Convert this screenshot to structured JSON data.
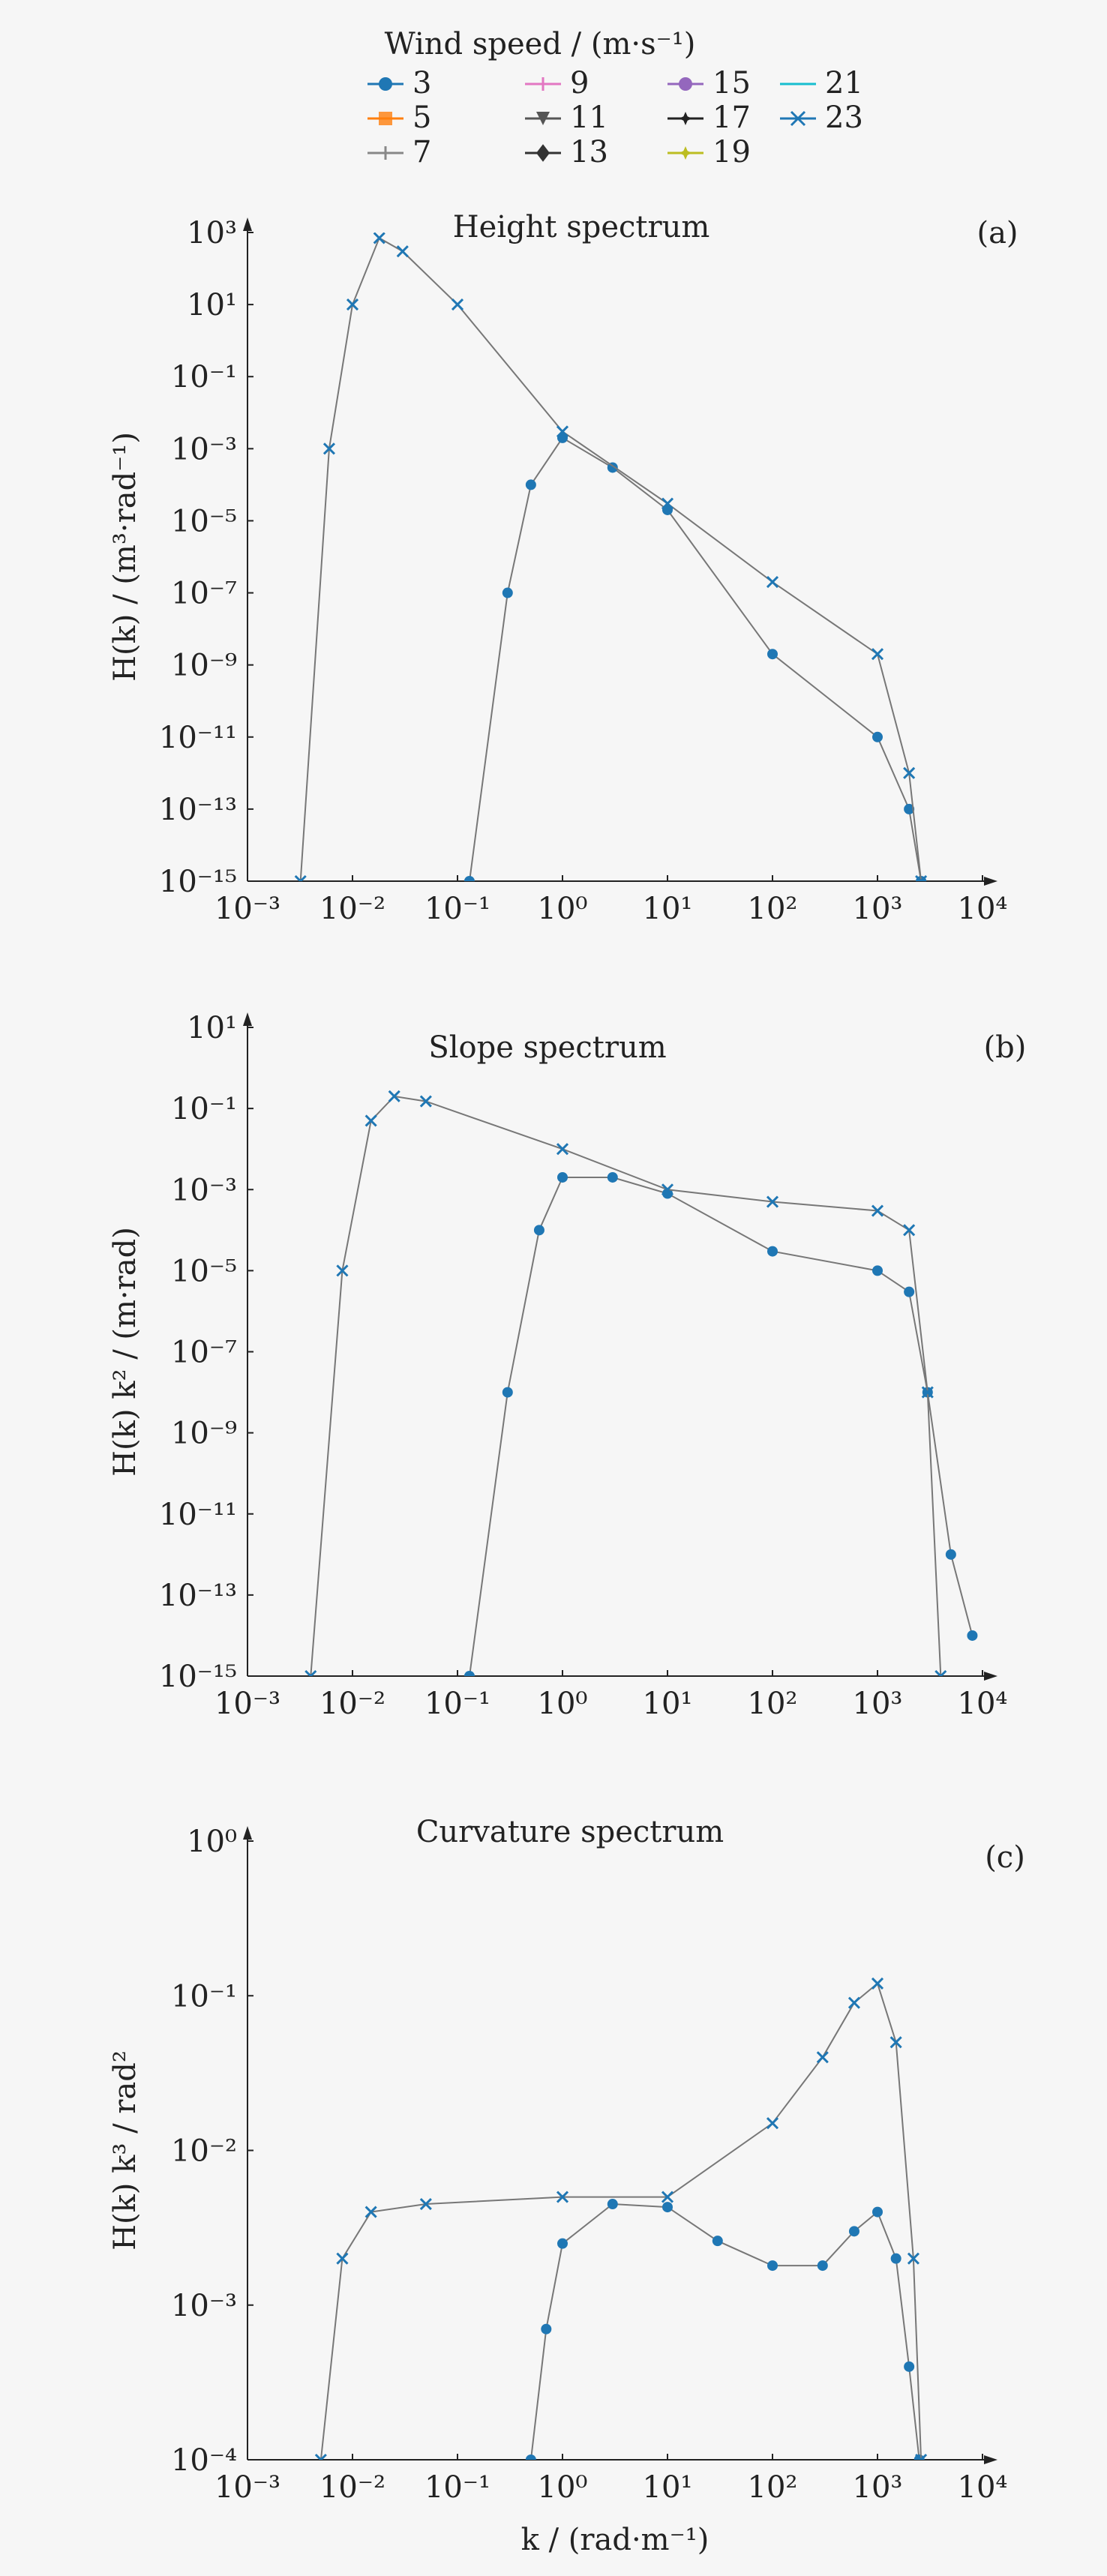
{
  "legend": {
    "title": "Wind speed / (m·s⁻¹)",
    "entries": [
      {
        "label": "3",
        "color": "#1f77b4",
        "marker": "circle"
      },
      {
        "label": "5",
        "color": "#ff7f0e",
        "marker": "x-square"
      },
      {
        "label": "7",
        "color": "#888888",
        "marker": "plus"
      },
      {
        "label": "9",
        "color": "#e377c2",
        "marker": "plus"
      },
      {
        "label": "11",
        "color": "#555555",
        "marker": "tri-down"
      },
      {
        "label": "13",
        "color": "#333333",
        "marker": "diamond"
      },
      {
        "label": "15",
        "color": "#9467bd",
        "marker": "circle"
      },
      {
        "label": "17",
        "color": "#222222",
        "marker": "star"
      },
      {
        "label": "19",
        "color": "#bcbd22",
        "marker": "star"
      },
      {
        "label": "21",
        "color": "#17becf",
        "marker": "line"
      },
      {
        "label": "23",
        "color": "#1f77b4",
        "marker": "x"
      }
    ]
  },
  "chart_data": [
    {
      "type": "line",
      "panel_label": "(a)",
      "title": "Height spectrum",
      "ylabel": "H(k) / (m³·rad⁻¹)",
      "xlabel": "",
      "x_scale": "log",
      "y_scale": "log",
      "xlim": [
        0.001,
        10000
      ],
      "ylim": [
        1e-15,
        1000
      ],
      "xticks": [
        "10⁻³",
        "10⁻²",
        "10⁻¹",
        "10⁰",
        "10¹",
        "10²",
        "10³",
        "10⁴"
      ],
      "yticks": [
        "10⁻¹⁵",
        "10⁻¹³",
        "10⁻¹¹",
        "10⁻⁹",
        "10⁻⁷",
        "10⁻⁵",
        "10⁻³",
        "10⁻¹",
        "10¹",
        "10³"
      ],
      "series": [
        {
          "name": "3",
          "x": [
            0.13,
            0.3,
            0.5,
            1,
            3,
            10,
            100,
            1000,
            2000,
            2600
          ],
          "y": [
            1e-15,
            1e-07,
            0.0001,
            0.002,
            0.0003,
            2e-05,
            2e-09,
            1e-11,
            1e-13,
            1e-15
          ]
        },
        {
          "name": "23",
          "x": [
            0.0032,
            0.006,
            0.01,
            0.018,
            0.03,
            0.1,
            1,
            10,
            100,
            1000,
            2000,
            2600
          ],
          "y": [
            1e-15,
            0.001,
            10,
            700,
            300,
            10,
            0.003,
            3e-05,
            2e-07,
            2e-09,
            1e-12,
            1e-15
          ]
        }
      ]
    },
    {
      "type": "line",
      "panel_label": "(b)",
      "title": "Slope spectrum",
      "ylabel": "H(k) k² / (m·rad)",
      "xlabel": "",
      "x_scale": "log",
      "y_scale": "log",
      "xlim": [
        0.001,
        10000
      ],
      "ylim": [
        1e-15,
        10
      ],
      "xticks": [
        "10⁻³",
        "10⁻²",
        "10⁻¹",
        "10⁰",
        "10¹",
        "10²",
        "10³",
        "10⁴"
      ],
      "yticks": [
        "10⁻¹⁵",
        "10⁻¹³",
        "10⁻¹¹",
        "10⁻⁹",
        "10⁻⁷",
        "10⁻⁵",
        "10⁻³",
        "10⁻¹",
        "10¹"
      ],
      "series": [
        {
          "name": "3",
          "x": [
            0.13,
            0.3,
            0.6,
            1,
            3,
            10,
            100,
            1000,
            2000,
            3000,
            5000,
            8000
          ],
          "y": [
            1e-15,
            1e-08,
            0.0001,
            0.002,
            0.002,
            0.0008,
            3e-05,
            1e-05,
            3e-06,
            1e-08,
            1e-12,
            1e-14
          ]
        },
        {
          "name": "23",
          "x": [
            0.004,
            0.008,
            0.015,
            0.025,
            0.05,
            1,
            10,
            100,
            1000,
            2000,
            3000,
            4000
          ],
          "y": [
            1e-15,
            1e-05,
            0.05,
            0.2,
            0.15,
            0.01,
            0.001,
            0.0005,
            0.0003,
            0.0001,
            1e-08,
            1e-15
          ]
        }
      ]
    },
    {
      "type": "line",
      "panel_label": "(c)",
      "title": "Curvature spectrum",
      "ylabel": "H(k) k³ / rad²",
      "xlabel": "k / (rad·m⁻¹)",
      "x_scale": "log",
      "y_scale": "log",
      "xlim": [
        0.001,
        10000
      ],
      "ylim": [
        0.0001,
        1
      ],
      "xticks": [
        "10⁻³",
        "10⁻²",
        "10⁻¹",
        "10⁰",
        "10¹",
        "10²",
        "10³",
        "10⁴"
      ],
      "yticks": [
        "10⁻⁴",
        "10⁻³",
        "10⁻²",
        "10⁻¹",
        "10⁰"
      ],
      "series": [
        {
          "name": "3",
          "x": [
            0.5,
            0.7,
            1,
            3,
            10,
            30,
            100,
            300,
            600,
            1000,
            1500,
            2000,
            2500
          ],
          "y": [
            0.0001,
            0.0007,
            0.0025,
            0.0045,
            0.0043,
            0.0026,
            0.0018,
            0.0018,
            0.003,
            0.004,
            0.002,
            0.0004,
            0.0001
          ]
        },
        {
          "name": "23",
          "x": [
            0.005,
            0.008,
            0.015,
            0.05,
            1,
            10,
            100,
            300,
            600,
            1000,
            1500,
            2200,
            2600
          ],
          "y": [
            0.0001,
            0.002,
            0.004,
            0.0045,
            0.005,
            0.005,
            0.015,
            0.04,
            0.09,
            0.12,
            0.05,
            0.002,
            0.0001
          ]
        }
      ]
    }
  ]
}
